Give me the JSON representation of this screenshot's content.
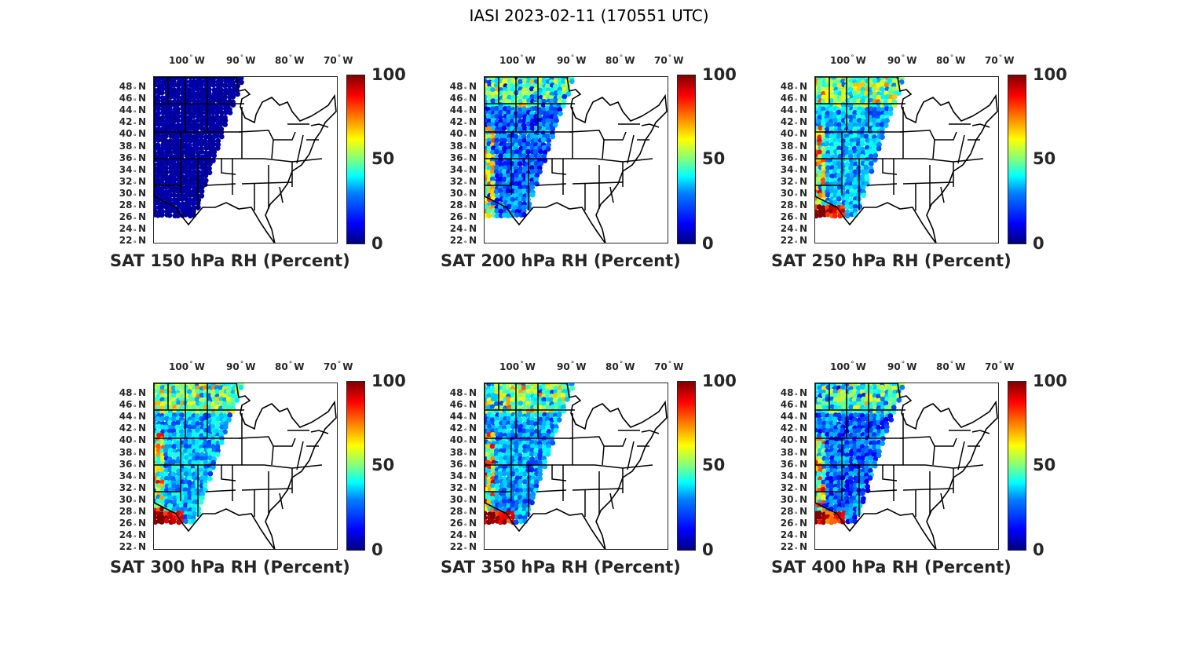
{
  "suptitle": "IASI 2023-02-11 (170551 UTC)",
  "lon_ticks": [
    {
      "deg": "100",
      "hem": "W"
    },
    {
      "deg": "90",
      "hem": "W"
    },
    {
      "deg": "80",
      "hem": "W"
    },
    {
      "deg": "70",
      "hem": "W"
    }
  ],
  "lat_ticks": [
    {
      "deg": "48",
      "hem": "N"
    },
    {
      "deg": "46",
      "hem": "N"
    },
    {
      "deg": "44",
      "hem": "N"
    },
    {
      "deg": "42",
      "hem": "N"
    },
    {
      "deg": "40",
      "hem": "N"
    },
    {
      "deg": "38",
      "hem": "N"
    },
    {
      "deg": "36",
      "hem": "N"
    },
    {
      "deg": "34",
      "hem": "N"
    },
    {
      "deg": "32",
      "hem": "N"
    },
    {
      "deg": "30",
      "hem": "N"
    },
    {
      "deg": "28",
      "hem": "N"
    },
    {
      "deg": "26",
      "hem": "N"
    },
    {
      "deg": "24",
      "hem": "N"
    },
    {
      "deg": "22",
      "hem": "N"
    }
  ],
  "colorbar": {
    "colormap": "jet",
    "ticks": [
      "0",
      "50",
      "100"
    ],
    "colors": [
      "#00007f",
      "#0000ff",
      "#007fff",
      "#00ffff",
      "#7fff7f",
      "#ffff00",
      "#ff7f00",
      "#ff0000",
      "#7f0000"
    ]
  },
  "panels": [
    {
      "title": "SAT 150 hPa RH (Percent)",
      "level_hpa": 150,
      "mean_rh": 2
    },
    {
      "title": "SAT 200 hPa RH (Percent)",
      "level_hpa": 200,
      "mean_rh": 22
    },
    {
      "title": "SAT 250 hPa RH (Percent)",
      "level_hpa": 250,
      "mean_rh": 30
    },
    {
      "title": "SAT 300 hPa RH (Percent)",
      "level_hpa": 300,
      "mean_rh": 30
    },
    {
      "title": "SAT 350 hPa RH (Percent)",
      "level_hpa": 350,
      "mean_rh": 28
    },
    {
      "title": "SAT 400 hPa RH (Percent)",
      "level_hpa": 400,
      "mean_rh": 22
    }
  ]
}
